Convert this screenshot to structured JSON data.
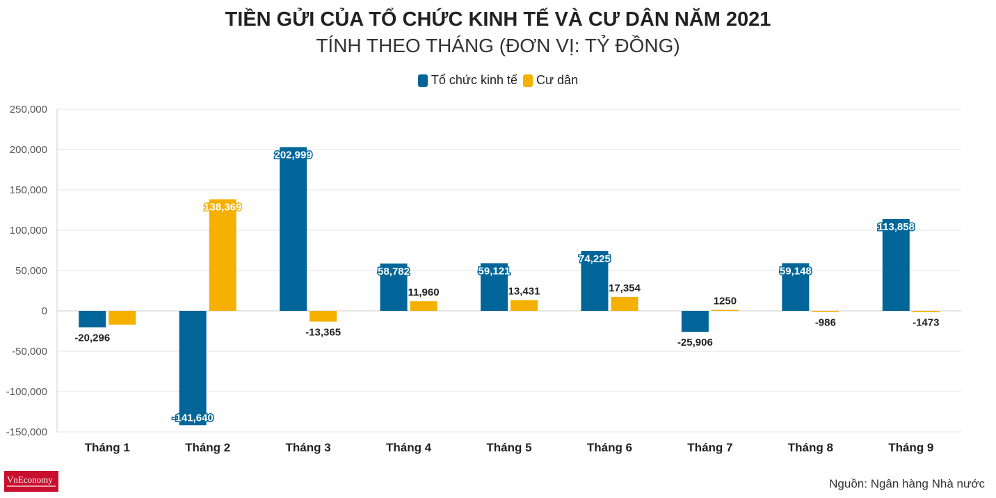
{
  "chart_data": {
    "type": "bar",
    "title": "TIỀN GỬI CỦA TỔ CHỨC KINH TẾ VÀ CƯ DÂN NĂM 2021",
    "subtitle": "TÍNH THEO THÁNG (ĐƠN VỊ: TỶ ĐỒNG)",
    "categories": [
      "Tháng 1",
      "Tháng 2",
      "Tháng 3",
      "Tháng 4",
      "Tháng 5",
      "Tháng 6",
      "Tháng 7",
      "Tháng 8",
      "Tháng 9"
    ],
    "series": [
      {
        "name": "Tổ chức kinh tế",
        "color": "#006699",
        "values": [
          -20296,
          -141640,
          202999,
          58782,
          59121,
          74225,
          -25906,
          59148,
          113858
        ],
        "labels": [
          "-20,296",
          "-141,640",
          "202,999",
          "58,782",
          "59,121",
          "74,225",
          "-25,906",
          "59,148",
          "113,858"
        ]
      },
      {
        "name": "Cư dân",
        "color": "#f5b000",
        "values": [
          -17000,
          138369,
          -13365,
          11960,
          13431,
          17354,
          1250,
          -986,
          -1473
        ],
        "labels": [
          "",
          "138,369",
          "-13,365",
          "11,960",
          "13,431",
          "17,354",
          "1250",
          "-986",
          "-1473"
        ]
      }
    ],
    "ylim": [
      -150000,
      250000
    ],
    "yticks": [
      250000,
      200000,
      150000,
      100000,
      50000,
      0,
      -50000,
      -100000,
      -150000
    ],
    "ytick_labels": [
      "250,000",
      "200,000",
      "150,000",
      "100,000",
      "50,000",
      "0",
      "-50,000",
      "-100,000",
      "-150,000"
    ],
    "grid": true,
    "legend": "top-center"
  },
  "source": "Nguồn: Ngân hàng Nhà nước",
  "logo": "VnEconomy"
}
